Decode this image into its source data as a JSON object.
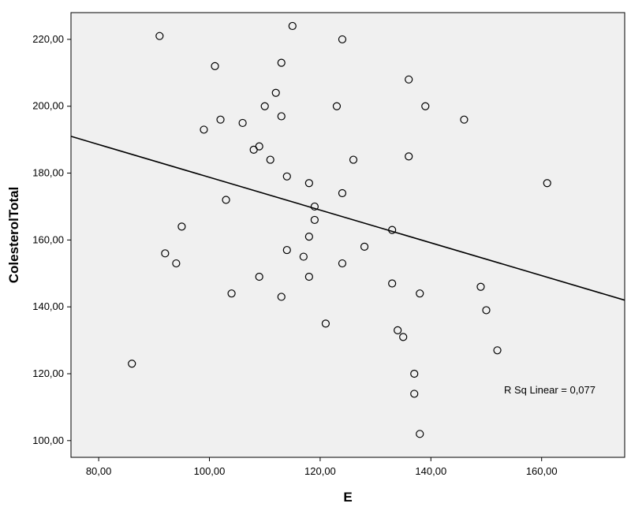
{
  "chart_data": {
    "type": "scatter",
    "xlabel": "E",
    "ylabel": "ColesterolTotal",
    "xlim": [
      75,
      175
    ],
    "ylim": [
      95,
      228
    ],
    "x_ticks": [
      "80,00",
      "100,00",
      "120,00",
      "140,00",
      "160,00"
    ],
    "x_tick_values": [
      80,
      100,
      120,
      140,
      160
    ],
    "y_ticks": [
      "100,00",
      "120,00",
      "140,00",
      "160,00",
      "180,00",
      "200,00",
      "220,00"
    ],
    "y_tick_values": [
      100,
      120,
      140,
      160,
      180,
      200,
      220
    ],
    "grid": false,
    "plot_background": "#f0f0f0",
    "marker_color": "#000000",
    "fit_line": {
      "type": "linear",
      "x": [
        75,
        175
      ],
      "y": [
        191,
        142
      ],
      "color": "#000000"
    },
    "annotation": "R Sq Linear = 0,077",
    "points": [
      [
        86,
        123
      ],
      [
        91,
        221
      ],
      [
        92,
        156
      ],
      [
        94,
        153
      ],
      [
        95,
        164
      ],
      [
        99,
        193
      ],
      [
        101,
        212
      ],
      [
        102,
        196
      ],
      [
        103,
        172
      ],
      [
        104,
        144
      ],
      [
        106,
        195
      ],
      [
        108,
        187
      ],
      [
        109,
        188
      ],
      [
        109,
        149
      ],
      [
        110,
        200
      ],
      [
        111,
        184
      ],
      [
        112,
        204
      ],
      [
        113,
        213
      ],
      [
        113,
        197
      ],
      [
        113,
        143
      ],
      [
        114,
        179
      ],
      [
        114,
        157
      ],
      [
        115,
        224
      ],
      [
        117,
        155
      ],
      [
        118,
        177
      ],
      [
        118,
        161
      ],
      [
        118,
        149
      ],
      [
        119,
        170
      ],
      [
        119,
        166
      ],
      [
        121,
        135
      ],
      [
        123,
        200
      ],
      [
        124,
        220
      ],
      [
        124,
        174
      ],
      [
        124,
        153
      ],
      [
        126,
        184
      ],
      [
        128,
        158
      ],
      [
        133,
        163
      ],
      [
        133,
        147
      ],
      [
        134,
        133
      ],
      [
        135,
        131
      ],
      [
        136,
        208
      ],
      [
        136,
        185
      ],
      [
        137,
        120
      ],
      [
        137,
        114
      ],
      [
        138,
        144
      ],
      [
        138,
        102
      ],
      [
        139,
        200
      ],
      [
        146,
        196
      ],
      [
        149,
        146
      ],
      [
        150,
        139
      ],
      [
        152,
        127
      ],
      [
        161,
        177
      ]
    ]
  }
}
